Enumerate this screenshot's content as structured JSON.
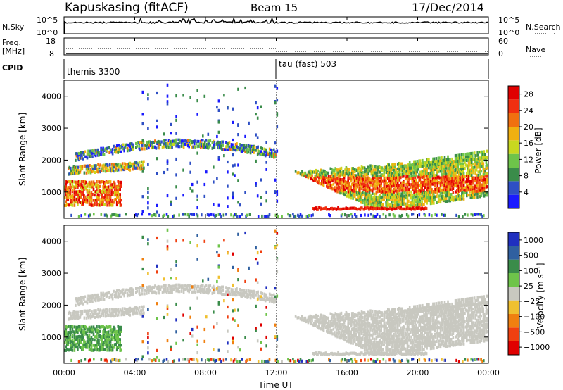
{
  "header": {
    "station": "Kapuskasing (fitACF)",
    "beam": "Beam 15",
    "date": "17/Dec/2014"
  },
  "strip_labels": {
    "nsky": "N.Sky",
    "nsearch": "N.Search",
    "freq_line1": "Freq.",
    "freq_line2": "[MHz]",
    "nave": "Nave",
    "cpid": "CPID"
  },
  "strip_ticks": {
    "nsky_top": "10^5",
    "nsky_bottom": "10^0",
    "nsearch_top": "10^5",
    "nsearch_bottom": "10^0",
    "freq_top": "18",
    "freq_bottom": "8",
    "nave_top": "60",
    "nave_bottom": "0"
  },
  "cpid_labels": [
    {
      "text": "themis 3300",
      "hour": 0
    },
    {
      "text": "tau (fast) 503",
      "hour": 12
    }
  ],
  "colors": {
    "power": [
      "#1a1aff",
      "#2e4fc4",
      "#3a8c4a",
      "#6ec44a",
      "#c8d820",
      "#f0b010",
      "#f07010",
      "#f03010",
      "#e00000"
    ],
    "velocity": [
      "#2030c0",
      "#3060a0",
      "#3a8c4a",
      "#6ec44a",
      "#c8c8c0",
      "#f0c030",
      "#f08010",
      "#f04010",
      "#e00000"
    ],
    "ground_scatter": "#c8c8c0"
  },
  "chart_data": [
    {
      "type": "heatmap",
      "name": "power",
      "xlabel": "",
      "ylabel": "Slant Range [km]",
      "xlim": [
        0,
        24
      ],
      "ylim": [
        180,
        4500
      ],
      "x_ticks": [
        "00:00",
        "04:00",
        "08:00",
        "12:00",
        "16:00",
        "20:00",
        "00:00"
      ],
      "y_ticks": [
        "1000",
        "2000",
        "3000",
        "4000"
      ],
      "colorbar": {
        "label": "Power [dB]",
        "ticks": [
          "4",
          "8",
          "12",
          "16",
          "20",
          "24",
          "28"
        ],
        "range": [
          0,
          30
        ]
      }
    },
    {
      "type": "heatmap",
      "name": "velocity",
      "xlabel": "Time UT",
      "ylabel": "Slant Range [km]",
      "xlim": [
        0,
        24
      ],
      "ylim": [
        180,
        4500
      ],
      "x_ticks": [
        "00:00",
        "04:00",
        "08:00",
        "12:00",
        "16:00",
        "20:00",
        "00:00"
      ],
      "y_ticks": [
        "1000",
        "2000",
        "3000",
        "4000"
      ],
      "colorbar": {
        "label": "Velocity [m s⁻¹]",
        "ticks": [
          "1000",
          "500",
          "100",
          "25",
          "−25",
          "−100",
          "−500",
          "−1000"
        ]
      }
    }
  ]
}
